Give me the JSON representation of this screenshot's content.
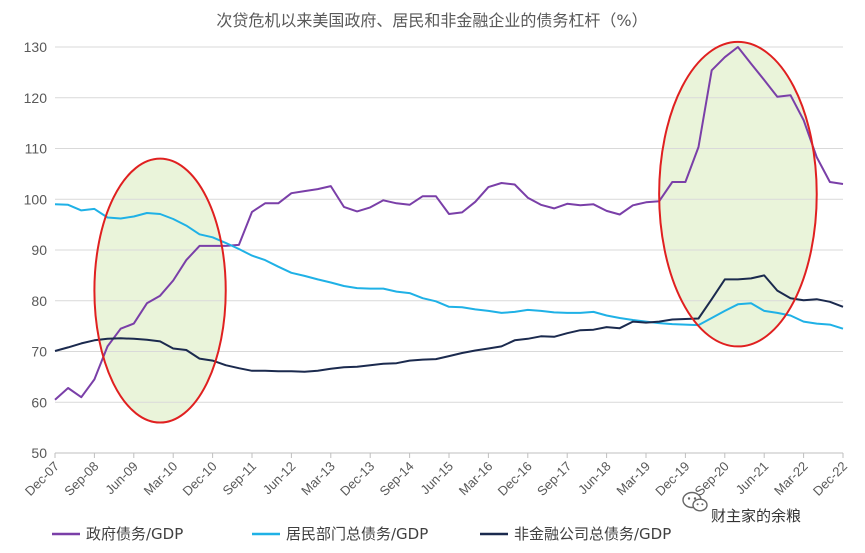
{
  "chart_data": {
    "type": "line",
    "title": "次贷危机以来美国政府、居民和非金融企业的债务杠杆（%）",
    "xlabel": "",
    "ylabel": "",
    "ylim": [
      50,
      130
    ],
    "y_ticks": [
      50,
      60,
      70,
      80,
      90,
      100,
      110,
      120,
      130
    ],
    "grid": true,
    "legend_position": "bottom",
    "x_start": "Dec-07",
    "x_end": "Dec-22",
    "x_frequency": "quarterly",
    "x_tick_labels": [
      "Dec-07",
      "Sep-08",
      "Jun-09",
      "Mar-10",
      "Dec-10",
      "Sep-11",
      "Jun-12",
      "Mar-13",
      "Dec-13",
      "Sep-14",
      "Jun-15",
      "Mar-16",
      "Dec-16",
      "Sep-17",
      "Jun-18",
      "Mar-19",
      "Dec-19",
      "Sep-20",
      "Jun-21",
      "Mar-22",
      "Dec-22"
    ],
    "series": [
      {
        "name": "政府债务/GDP",
        "color": "#7a3fa8",
        "values": [
          60.5,
          62.8,
          61.0,
          64.5,
          71.0,
          74.5,
          75.5,
          79.5,
          81.0,
          84.0,
          88.0,
          90.8,
          90.8,
          90.8,
          91.0,
          97.5,
          99.2,
          99.2,
          101.2,
          101.6,
          102.0,
          102.6,
          98.5,
          97.6,
          98.4,
          99.8,
          99.2,
          98.9,
          100.6,
          100.6,
          97.1,
          97.4,
          99.5,
          102.4,
          103.2,
          102.9,
          100.3,
          98.9,
          98.2,
          99.1,
          98.8,
          99.0,
          97.7,
          97.0,
          98.8,
          99.4,
          99.6,
          103.4,
          103.4,
          110.3,
          125.4,
          128.0,
          130.0,
          126.7,
          123.5,
          120.2,
          120.5,
          115.6,
          108.3,
          103.4,
          103.0
        ]
      },
      {
        "name": "居民部门总债务/GDP",
        "color": "#1fb1e6",
        "values": [
          99.0,
          98.9,
          97.8,
          98.1,
          96.4,
          96.2,
          96.6,
          97.3,
          97.1,
          96.1,
          94.8,
          93.1,
          92.5,
          91.4,
          90.2,
          88.9,
          88.0,
          86.7,
          85.5,
          84.9,
          84.2,
          83.6,
          82.9,
          82.5,
          82.4,
          82.4,
          81.8,
          81.5,
          80.5,
          79.9,
          78.8,
          78.7,
          78.3,
          78.0,
          77.6,
          77.8,
          78.2,
          78.0,
          77.7,
          77.6,
          77.6,
          77.8,
          77.1,
          76.6,
          76.2,
          75.9,
          75.6,
          75.4,
          75.3,
          75.2,
          76.6,
          78.0,
          79.3,
          79.5,
          78.0,
          77.6,
          77.1,
          75.9,
          75.5,
          75.3,
          74.5
        ]
      },
      {
        "name": "非金融公司总债务/GDP",
        "color": "#1b2a4e",
        "values": [
          70.1,
          70.8,
          71.6,
          72.2,
          72.5,
          72.6,
          72.5,
          72.3,
          72.0,
          70.6,
          70.3,
          68.6,
          68.2,
          67.3,
          66.7,
          66.2,
          66.2,
          66.1,
          66.1,
          66.0,
          66.2,
          66.6,
          66.9,
          67.0,
          67.3,
          67.6,
          67.7,
          68.2,
          68.4,
          68.5,
          69.1,
          69.7,
          70.2,
          70.6,
          71.0,
          72.2,
          72.5,
          73.0,
          72.9,
          73.6,
          74.2,
          74.3,
          74.8,
          74.6,
          75.9,
          75.7,
          75.9,
          76.3,
          76.4,
          76.5,
          80.3,
          84.2,
          84.2,
          84.4,
          85.0,
          82.0,
          80.5,
          80.1,
          80.3,
          79.8,
          78.8
        ]
      }
    ],
    "annotations": [
      {
        "type": "ellipse",
        "color": "#e02020",
        "fill": "#eaf4da",
        "from": "Sep-08",
        "to": "Mar-11",
        "y_range": [
          56,
          108
        ]
      },
      {
        "type": "ellipse",
        "color": "#e02020",
        "fill": "#eaf4da",
        "from": "Jun-19",
        "to": "Jun-22",
        "y_range": [
          71,
          131
        ]
      }
    ]
  },
  "watermark": {
    "icon": "wechat-icon",
    "text": "财主家的余粮"
  }
}
